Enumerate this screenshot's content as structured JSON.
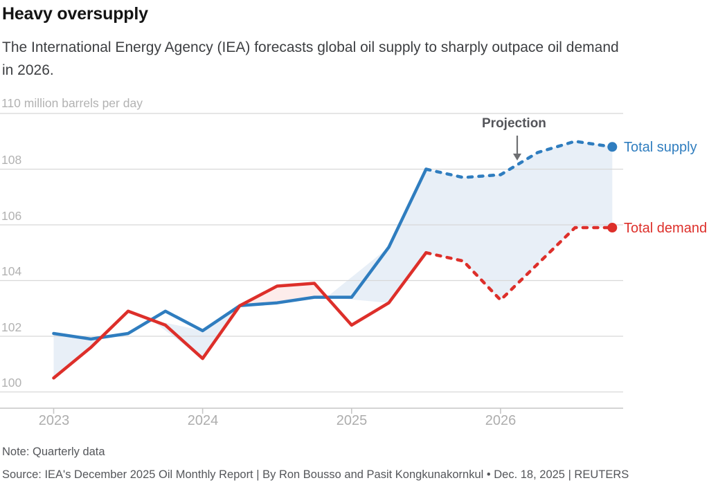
{
  "header": {
    "title": "Heavy oversupply",
    "subtitle": "The International Energy Agency (IEA) forecasts global oil supply to sharply outpace oil demand in 2026."
  },
  "chart_data": {
    "type": "line",
    "title": "Heavy oversupply",
    "unit": "million barrels per day",
    "y_axis_top_label": "110 million barrels per day",
    "y_ticks": [
      100,
      102,
      104,
      106,
      108,
      110
    ],
    "y_tick_labels": [
      "108",
      "106",
      "104",
      "102",
      "100"
    ],
    "ylim": [
      100,
      110
    ],
    "x_tick_labels": [
      "2023",
      "2024",
      "2025",
      "2026"
    ],
    "categories": [
      "Q1 2023",
      "Q2 2023",
      "Q3 2023",
      "Q4 2023",
      "Q1 2024",
      "Q2 2024",
      "Q3 2024",
      "Q4 2024",
      "Q1 2025",
      "Q2 2025",
      "Q3 2025",
      "Q4 2025",
      "Q1 2026",
      "Q2 2026",
      "Q3 2026",
      "Q4 2026"
    ],
    "grid": true,
    "legend_position": "line-end-labels-right",
    "projection_start_index": 10,
    "annotation": {
      "label": "Projection"
    },
    "series": [
      {
        "name": "Total supply",
        "color": "#2f7dbf",
        "values": [
          102.1,
          101.9,
          102.1,
          102.9,
          102.2,
          103.1,
          103.2,
          103.4,
          103.4,
          105.2,
          108.0,
          107.7,
          107.8,
          108.6,
          109.0,
          108.8
        ]
      },
      {
        "name": "Total demand",
        "color": "#dd2f2a",
        "values": [
          100.5,
          101.6,
          102.9,
          102.4,
          101.2,
          103.1,
          103.8,
          103.9,
          102.4,
          103.2,
          105.0,
          104.7,
          103.3,
          104.6,
          105.9,
          105.9
        ]
      }
    ],
    "fill_between": {
      "supply_above_color": "#e8eff7",
      "demand_above_color": "#fdeceb"
    },
    "axis_color": "#c6c6c6",
    "grid_color": "#d8d8d8",
    "arrow_color": "#6e6f72"
  },
  "footer": {
    "note": "Note: Quarterly data",
    "source": "Source: IEA's December 2025 Oil Monthly Report | By Ron Bousso and Pasit Kongkunakornkul • Dec. 18, 2025 | REUTERS"
  }
}
